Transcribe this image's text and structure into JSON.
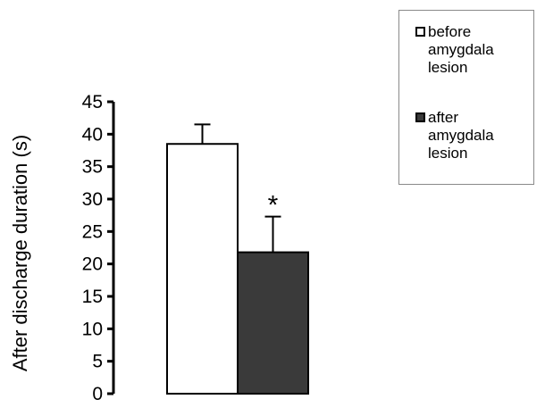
{
  "chart_data": {
    "type": "bar",
    "categories": [
      "before amygdala lesion",
      "after amygdala lesion"
    ],
    "values": [
      38.5,
      21.8
    ],
    "error_bars": [
      3.0,
      5.5
    ],
    "colors": [
      "#ffffff",
      "#3a3a3a"
    ],
    "title": "",
    "xlabel": "",
    "ylabel": "After discharge duration (s)",
    "ylim": [
      0,
      45
    ],
    "yticks": [
      "0",
      "5",
      "10",
      "15",
      "20",
      "25",
      "30",
      "35",
      "40",
      "45"
    ],
    "grid": false,
    "legend_position": "top-right",
    "annotations": [
      {
        "category": "after amygdala lesion",
        "text": "*"
      }
    ]
  },
  "legend": {
    "entries": [
      {
        "label": "before amygdala lesion",
        "color": "#ffffff"
      },
      {
        "label": "after amygdala lesion",
        "color": "#3a3a3a"
      }
    ]
  }
}
